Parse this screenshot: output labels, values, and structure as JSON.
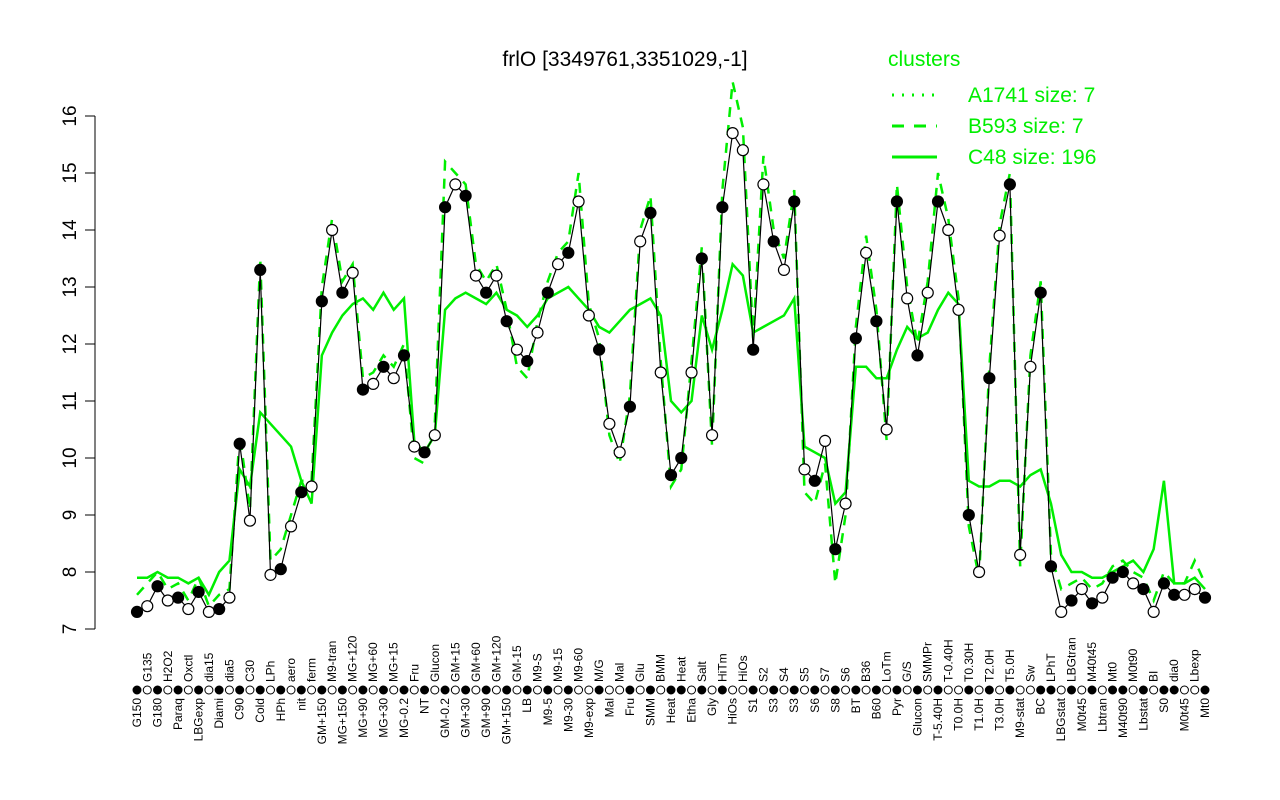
{
  "chart_data": {
    "type": "line",
    "title": "frlO [3349761,3351029,-1]",
    "xlabel": "",
    "ylabel": "",
    "ylim": [
      7,
      16
    ],
    "yticks": [
      7,
      8,
      9,
      10,
      11,
      12,
      13,
      14,
      15,
      16
    ],
    "grid": false,
    "legend": {
      "title": "clusters",
      "placement": "top-right",
      "entries": [
        {
          "label": "A1741 size: 7",
          "style": "dotted"
        },
        {
          "label": "B593 size: 7",
          "style": "dashed"
        },
        {
          "label": "C48 size: 196",
          "style": "solid"
        }
      ]
    },
    "colors": {
      "clusters": "#00ee00",
      "points": "#000000"
    },
    "categories": [
      "G150",
      "G135",
      "G180",
      "H2O2",
      "Paraq",
      "Oxctl",
      "LBGexp",
      "dia15",
      "Diami",
      "dia5",
      "C90",
      "C30",
      "Cold",
      "LPh",
      "HPh",
      "aero",
      "nit",
      "ferm",
      "GM+150",
      "M9-tran",
      "MG+150",
      "MG+120",
      "MG+90",
      "MG+60",
      "MG+30",
      "MG+15",
      "MG-0.2",
      "Fru",
      "NT",
      "Glucon",
      "GM-0.2",
      "GM+15",
      "GM+30",
      "GM+60",
      "GM+90",
      "GM+120",
      "GM+150",
      "GM-15",
      "LB",
      "M9-S",
      "M9-5",
      "M9-15",
      "M9-30",
      "M9-60",
      "M9-exp",
      "M/G",
      "Mal",
      "Mal",
      "Fru",
      "Glu",
      "SMM",
      "BMM",
      "Heat",
      "Heat",
      "Etha",
      "Salt",
      "Gly",
      "HiTm",
      "HiOs",
      "HiOs",
      "S1",
      "S2",
      "S3",
      "S4",
      "S3",
      "S5",
      "S6",
      "S7",
      "S8",
      "S6",
      "BT",
      "B36",
      "B60",
      "LoTm",
      "Pyr",
      "G/S",
      "Glucon",
      "SMMPr",
      "T-5.40H",
      "T-0.40H",
      "T0.0H",
      "T0.30H",
      "T1.0H",
      "T2.0H",
      "T3.0H",
      "T5.0H",
      "M9-stat",
      "Sw",
      "BC",
      "LPhT",
      "LBGstat",
      "LBGtran",
      "M0t45",
      "M40t45",
      "Lbtran",
      "Mt0",
      "M40t90",
      "M0t90",
      "Lbstat",
      "BI",
      "S0",
      "dia0",
      "M0t45",
      "Lbexp",
      "Mt0"
    ],
    "values": [
      7.3,
      7.4,
      7.75,
      7.5,
      7.55,
      7.35,
      7.65,
      7.3,
      7.35,
      7.55,
      10.25,
      8.9,
      13.3,
      7.95,
      8.05,
      8.8,
      9.4,
      9.5,
      12.75,
      14.0,
      12.9,
      13.25,
      11.2,
      11.3,
      11.6,
      11.4,
      11.8,
      10.2,
      10.1,
      10.4,
      14.4,
      14.8,
      14.6,
      13.2,
      12.9,
      13.2,
      12.4,
      11.9,
      11.7,
      12.2,
      12.9,
      13.4,
      13.6,
      14.5,
      12.5,
      11.9,
      10.6,
      10.1,
      10.9,
      13.8,
      14.3,
      11.5,
      9.7,
      10.0,
      11.5,
      13.5,
      10.4,
      14.4,
      15.7,
      15.4,
      11.9,
      14.8,
      13.8,
      13.3,
      14.5,
      9.8,
      9.6,
      10.3,
      8.4,
      9.2,
      12.1,
      13.6,
      12.4,
      10.5,
      14.5,
      12.8,
      11.8,
      12.9,
      14.5,
      14.0,
      12.6,
      9.0,
      8.0,
      11.4,
      13.9,
      14.8,
      8.3,
      11.6,
      12.9,
      8.1,
      7.3,
      7.5,
      7.7,
      7.45,
      7.55,
      7.9,
      8.0,
      7.8,
      7.7,
      7.3,
      7.8,
      7.6,
      7.6,
      7.7,
      7.55
    ],
    "filled": [
      1,
      0,
      1,
      0,
      1,
      0,
      1,
      0,
      1,
      0,
      1,
      0,
      1,
      0,
      1,
      0,
      1,
      0,
      1,
      0,
      1,
      0,
      1,
      0,
      1,
      0,
      1,
      0,
      1,
      0,
      1,
      0,
      1,
      0,
      1,
      0,
      1,
      0,
      1,
      0,
      1,
      0,
      1,
      0,
      0,
      1,
      0,
      0,
      1,
      0,
      1,
      0,
      1,
      1,
      0,
      1,
      0,
      1,
      0,
      0,
      1,
      0,
      1,
      0,
      1,
      0,
      1,
      0,
      1,
      0,
      1,
      0,
      1,
      0,
      1,
      0,
      1,
      0,
      1,
      0,
      0,
      1,
      0,
      1,
      0,
      1,
      0,
      0,
      1,
      1,
      0,
      1,
      0,
      1,
      0,
      1,
      1,
      0,
      1,
      0,
      1,
      1,
      0,
      0,
      1
    ],
    "series": [
      {
        "name": "C48",
        "style": "solid",
        "values": [
          7.9,
          7.9,
          8.0,
          7.9,
          7.9,
          7.8,
          7.9,
          7.6,
          8.0,
          8.2,
          9.8,
          9.5,
          10.8,
          10.6,
          10.4,
          10.2,
          9.6,
          9.2,
          11.8,
          12.2,
          12.5,
          12.7,
          12.8,
          12.6,
          12.9,
          12.6,
          12.8,
          10.3,
          10.1,
          10.4,
          12.6,
          12.8,
          12.9,
          12.8,
          12.7,
          12.9,
          12.6,
          12.5,
          12.3,
          12.5,
          12.8,
          12.9,
          13.0,
          12.8,
          12.6,
          12.3,
          12.2,
          12.4,
          12.6,
          12.7,
          12.8,
          12.5,
          11.0,
          10.8,
          11.0,
          12.5,
          11.9,
          12.6,
          13.4,
          13.2,
          12.2,
          12.3,
          12.4,
          12.5,
          12.8,
          10.2,
          10.1,
          10.0,
          9.2,
          9.4,
          11.6,
          11.6,
          11.4,
          11.4,
          11.9,
          12.3,
          12.1,
          12.2,
          12.6,
          12.9,
          12.7,
          9.6,
          9.5,
          9.5,
          9.6,
          9.6,
          9.5,
          9.7,
          9.8,
          9.2,
          8.3,
          8.0,
          8.0,
          7.9,
          7.9,
          8.0,
          8.1,
          8.2,
          8.0,
          8.4,
          9.6,
          7.8,
          7.8,
          7.9,
          7.7
        ]
      },
      {
        "name": "B593",
        "style": "dashed",
        "values": [
          7.6,
          7.8,
          8.0,
          7.7,
          7.8,
          7.5,
          7.9,
          7.4,
          7.6,
          7.7,
          10.4,
          9.1,
          13.5,
          8.2,
          8.4,
          9.0,
          9.6,
          9.6,
          13.0,
          14.2,
          13.1,
          13.4,
          11.4,
          11.5,
          11.8,
          11.6,
          12.0,
          10.0,
          9.9,
          10.6,
          15.2,
          15.0,
          14.8,
          13.4,
          13.1,
          13.4,
          12.6,
          11.6,
          11.4,
          12.4,
          13.1,
          13.6,
          13.8,
          15.0,
          12.7,
          12.1,
          10.4,
          9.9,
          11.1,
          14.0,
          14.6,
          11.7,
          9.5,
          9.8,
          11.7,
          13.7,
          10.2,
          14.7,
          16.6,
          15.8,
          12.1,
          15.3,
          14.0,
          13.5,
          14.7,
          9.4,
          9.2,
          9.9,
          7.8,
          9.0,
          12.3,
          13.9,
          12.6,
          10.3,
          14.8,
          13.0,
          12.0,
          13.1,
          15.0,
          14.2,
          12.8,
          8.8,
          7.9,
          11.6,
          14.1,
          15.0,
          8.1,
          11.8,
          13.1,
          8.3,
          7.7,
          7.8,
          7.9,
          7.7,
          7.8,
          8.1,
          8.2,
          8.0,
          7.9,
          7.5,
          8.0,
          7.8,
          7.8,
          8.2,
          7.8
        ]
      }
    ]
  }
}
